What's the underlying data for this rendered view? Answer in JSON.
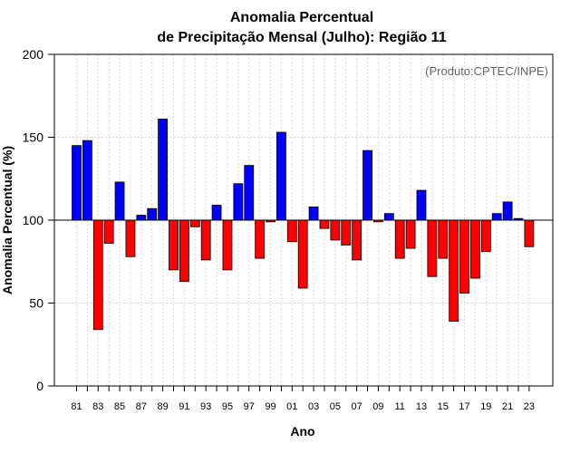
{
  "chart_data": {
    "type": "bar",
    "title_line1": "Anomalia Percentual",
    "title_line2": "de Precipitação Mensal (Julho): Região 11",
    "xlabel": "Ano",
    "ylabel": "Anomalia Percentual (%)",
    "source": "(Produto:CPTEC/INPE)",
    "ylim": [
      0,
      200
    ],
    "yticks": [
      "0",
      "50",
      "100",
      "150",
      "200"
    ],
    "baseline": 100,
    "xtick_labels": [
      "81",
      "83",
      "85",
      "87",
      "89",
      "91",
      "93",
      "95",
      "97",
      "99",
      "01",
      "03",
      "05",
      "07",
      "09",
      "11",
      "13",
      "15",
      "17",
      "19",
      "21",
      "23"
    ],
    "categories": [
      "1981",
      "1982",
      "1983",
      "1984",
      "1985",
      "1986",
      "1987",
      "1988",
      "1989",
      "1990",
      "1991",
      "1992",
      "1993",
      "1994",
      "1995",
      "1996",
      "1997",
      "1998",
      "1999",
      "2000",
      "2001",
      "2002",
      "2003",
      "2004",
      "2005",
      "2006",
      "2007",
      "2008",
      "2009",
      "2010",
      "2011",
      "2012",
      "2013",
      "2014",
      "2015",
      "2016",
      "2017",
      "2018",
      "2019",
      "2020",
      "2021",
      "2022",
      "2023"
    ],
    "values": [
      145,
      148,
      34,
      86,
      123,
      78,
      103,
      107,
      161,
      70,
      63,
      96,
      76,
      109,
      70,
      122,
      133,
      77,
      99,
      153,
      87,
      59,
      108,
      95,
      88,
      85,
      76,
      142,
      99,
      104,
      77,
      83,
      118,
      66,
      77,
      39,
      56,
      65,
      81,
      104,
      111,
      101,
      84
    ],
    "colors": {
      "above": "#0000ff",
      "below": "#ff0000",
      "grid": "#d9d9d9"
    }
  }
}
